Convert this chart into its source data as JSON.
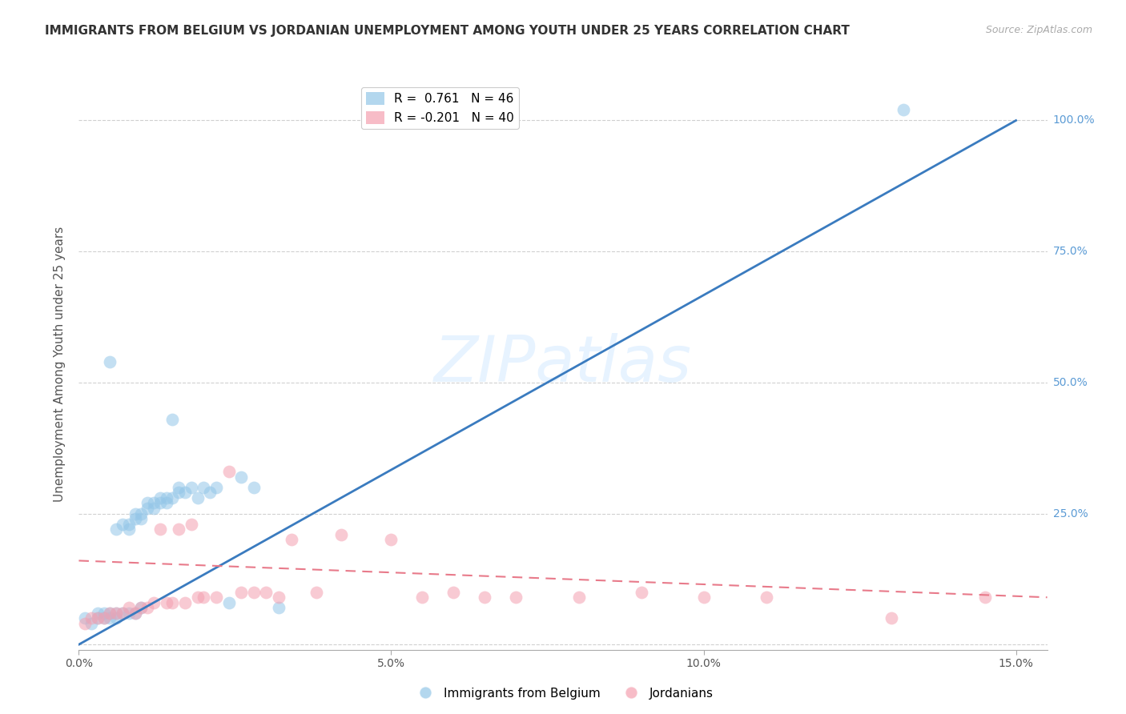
{
  "title": "IMMIGRANTS FROM BELGIUM VS JORDANIAN UNEMPLOYMENT AMONG YOUTH UNDER 25 YEARS CORRELATION CHART",
  "source": "Source: ZipAtlas.com",
  "ylabel": "Unemployment Among Youth under 25 years",
  "blue_label": "Immigrants from Belgium",
  "pink_label": "Jordanians",
  "blue_R": 0.761,
  "blue_N": 46,
  "pink_R": -0.201,
  "pink_N": 40,
  "xlim": [
    0.0,
    0.155
  ],
  "ylim": [
    -0.01,
    1.08
  ],
  "blue_color": "#93c6e8",
  "pink_color": "#f4a0b0",
  "blue_line_color": "#3a7bbf",
  "pink_line_color": "#e87a8a",
  "watermark": "ZIPatlas",
  "blue_scatter_x": [
    0.001,
    0.002,
    0.003,
    0.003,
    0.004,
    0.004,
    0.005,
    0.005,
    0.005,
    0.006,
    0.006,
    0.006,
    0.007,
    0.007,
    0.008,
    0.008,
    0.008,
    0.009,
    0.009,
    0.009,
    0.01,
    0.01,
    0.01,
    0.011,
    0.011,
    0.012,
    0.012,
    0.013,
    0.013,
    0.014,
    0.014,
    0.015,
    0.015,
    0.016,
    0.016,
    0.017,
    0.018,
    0.019,
    0.02,
    0.021,
    0.022,
    0.024,
    0.026,
    0.028,
    0.032,
    0.132
  ],
  "blue_scatter_y": [
    0.05,
    0.04,
    0.05,
    0.06,
    0.05,
    0.06,
    0.05,
    0.06,
    0.54,
    0.05,
    0.06,
    0.22,
    0.06,
    0.23,
    0.06,
    0.22,
    0.23,
    0.06,
    0.24,
    0.25,
    0.07,
    0.24,
    0.25,
    0.26,
    0.27,
    0.26,
    0.27,
    0.27,
    0.28,
    0.28,
    0.27,
    0.43,
    0.28,
    0.29,
    0.3,
    0.29,
    0.3,
    0.28,
    0.3,
    0.29,
    0.3,
    0.08,
    0.32,
    0.3,
    0.07,
    1.02
  ],
  "pink_scatter_x": [
    0.001,
    0.002,
    0.003,
    0.004,
    0.005,
    0.006,
    0.007,
    0.008,
    0.009,
    0.01,
    0.011,
    0.012,
    0.013,
    0.014,
    0.015,
    0.016,
    0.017,
    0.018,
    0.019,
    0.02,
    0.022,
    0.024,
    0.026,
    0.028,
    0.03,
    0.032,
    0.034,
    0.038,
    0.042,
    0.05,
    0.055,
    0.06,
    0.065,
    0.07,
    0.08,
    0.09,
    0.1,
    0.11,
    0.13,
    0.145
  ],
  "pink_scatter_y": [
    0.04,
    0.05,
    0.05,
    0.05,
    0.06,
    0.06,
    0.06,
    0.07,
    0.06,
    0.07,
    0.07,
    0.08,
    0.22,
    0.08,
    0.08,
    0.22,
    0.08,
    0.23,
    0.09,
    0.09,
    0.09,
    0.33,
    0.1,
    0.1,
    0.1,
    0.09,
    0.2,
    0.1,
    0.21,
    0.2,
    0.09,
    0.1,
    0.09,
    0.09,
    0.09,
    0.1,
    0.09,
    0.09,
    0.05,
    0.09
  ],
  "blue_line_x": [
    0.0,
    0.15
  ],
  "blue_line_y": [
    0.0,
    1.0
  ],
  "pink_line_x": [
    0.0,
    0.155
  ],
  "pink_line_y": [
    0.16,
    0.09
  ],
  "background_color": "#ffffff",
  "title_fontsize": 11,
  "axis_label_fontsize": 11,
  "tick_fontsize": 10,
  "legend_fontsize": 11
}
